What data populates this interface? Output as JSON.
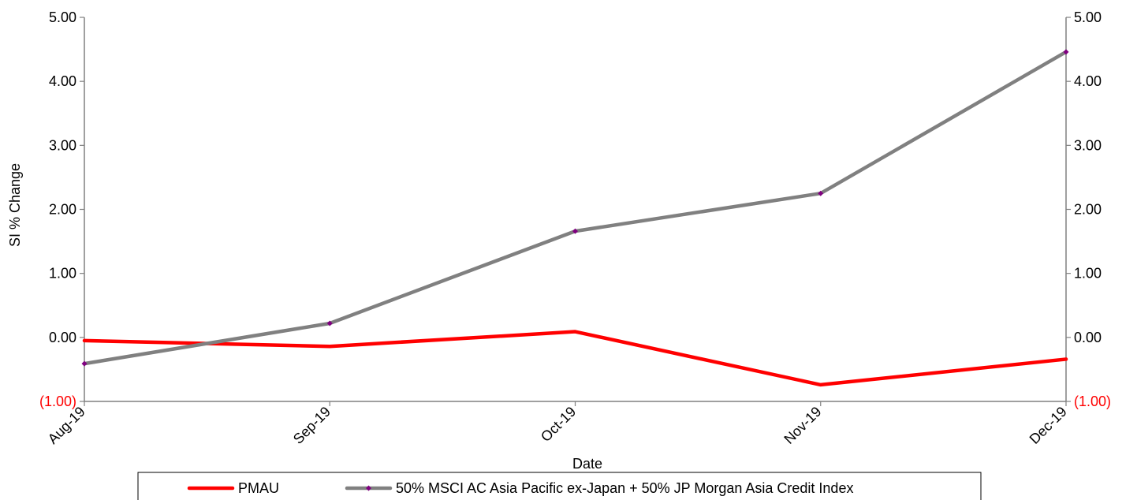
{
  "chart_data": {
    "type": "line",
    "x": [
      "Aug-19",
      "Sep-19",
      "Oct-19",
      "Nov-19",
      "Dec-19"
    ],
    "series": [
      {
        "name": "PMAU",
        "color": "#ff0000",
        "values": [
          -0.05,
          -0.14,
          0.09,
          -0.74,
          -0.34
        ]
      },
      {
        "name": "50% MSCI AC Asia Pacific ex-Japan + 50% JP Morgan Asia Credit Index",
        "color": "#808080",
        "marker_color": "#800080",
        "values": [
          -0.41,
          0.22,
          1.66,
          2.25,
          4.46
        ]
      }
    ],
    "xlabel": "Date",
    "ylabel": "SI % Change",
    "ylim": [
      -1,
      5
    ],
    "y_ticks": [
      "(1.00)",
      "0.00",
      "1.00",
      "2.00",
      "3.00",
      "4.00",
      "5.00"
    ],
    "y_ticks_right": [
      "(1.00)",
      "0.00",
      "1.00",
      "2.00",
      "3.00",
      "4.00",
      "5.00"
    ],
    "grid": false,
    "legend_position": "bottom"
  }
}
